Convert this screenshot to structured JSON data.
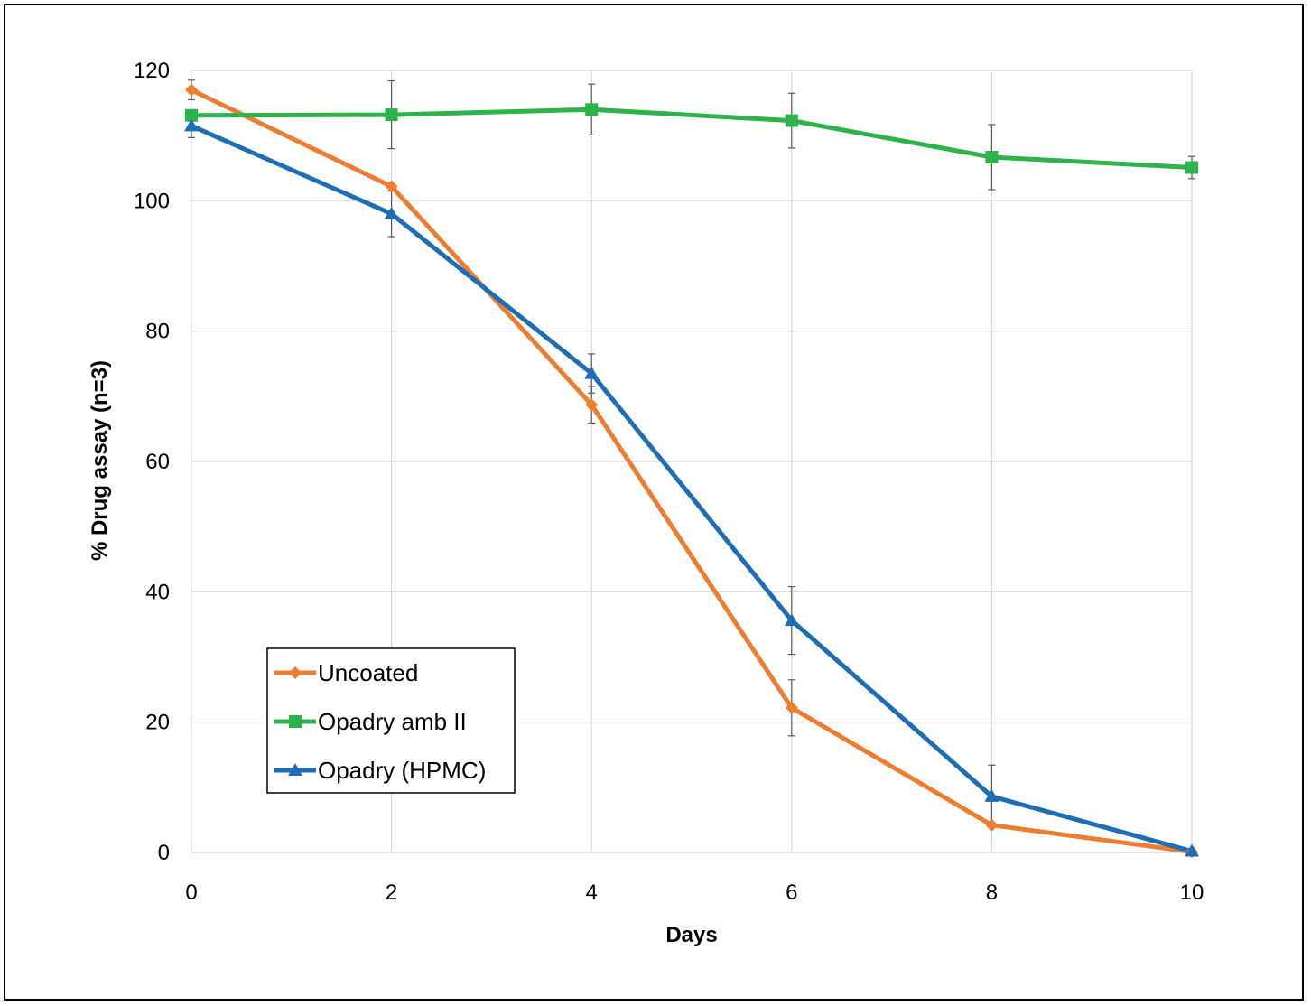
{
  "chart_data": {
    "type": "line",
    "xlabel": "Days",
    "ylabel": "% Drug assay  (n=3)",
    "x": [
      0,
      2,
      4,
      6,
      8,
      10
    ],
    "xlim": [
      0,
      10
    ],
    "ylim": [
      0,
      120
    ],
    "xticks": [
      "0",
      "2",
      "4",
      "6",
      "8",
      "10"
    ],
    "yticks": [
      "0",
      "20",
      "40",
      "60",
      "80",
      "100",
      "120"
    ],
    "grid": true,
    "legend_position": "lower-left",
    "series": [
      {
        "name": "Uncoated",
        "color": "#ED7D31",
        "marker": "diamond",
        "values": [
          117.0,
          102.2,
          68.7,
          22.2,
          4.2,
          0.1
        ],
        "error": [
          1.5,
          0.0,
          2.8,
          4.3,
          0.0,
          0.0
        ]
      },
      {
        "name": "Opadry amb II",
        "color": "#2EB34A",
        "marker": "square",
        "values": [
          113.1,
          113.2,
          114.0,
          112.3,
          106.7,
          105.1
        ],
        "error": [
          0.0,
          5.2,
          3.9,
          4.2,
          5.0,
          1.7
        ]
      },
      {
        "name": "Opadry (HPMC)",
        "color": "#1F6EB5",
        "marker": "triangle",
        "values": [
          111.5,
          98.0,
          73.5,
          35.6,
          8.6,
          0.2
        ],
        "error": [
          1.8,
          3.5,
          3.0,
          5.2,
          4.8,
          0.0
        ]
      }
    ]
  }
}
